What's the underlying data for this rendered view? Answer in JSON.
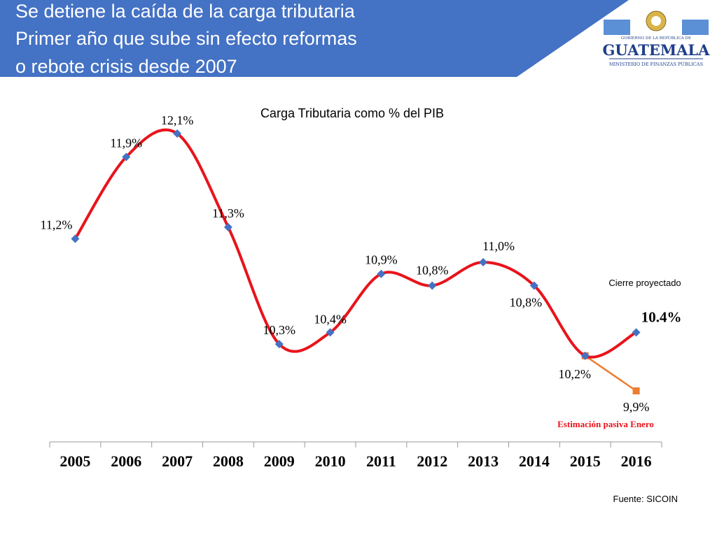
{
  "header": {
    "title_lines": [
      "Se detiene la caída de la carga tributaria",
      "Primer año que sube sin efecto reformas",
      "o rebote crisis desde 2007"
    ],
    "banner_color": "#4472c4"
  },
  "logo": {
    "top_text": "GOBIERNO DE LA REPÚBLICA DE",
    "main_text": "GUATEMALA",
    "sub_text": "MINISTERIO DE FINANZAS PÚBLICAS",
    "icon": "coat-of-arms-icon"
  },
  "chart_data": {
    "type": "line",
    "title": "Carga Tributaria como % del PIB",
    "xlabel": "",
    "ylabel": "",
    "ylim": [
      9.5,
      12.3
    ],
    "grid": false,
    "categories": [
      "2005",
      "2006",
      "2007",
      "2008",
      "2009",
      "2010",
      "2011",
      "2012",
      "2013",
      "2014",
      "2015",
      "2016"
    ],
    "series": [
      {
        "values": [
          11.2,
          11.9,
          12.1,
          11.3,
          10.3,
          10.4,
          10.9,
          10.8,
          11.0,
          10.8,
          10.2,
          10.4
        ],
        "labels": [
          "11,2%",
          "11,9%",
          "12,1%",
          "11,3%",
          "10,3%",
          "10,4%",
          "10,9%",
          "10,8%",
          "11,0%",
          "10,8%",
          "10,2%",
          "10.4%"
        ],
        "line_color": "#e8141b",
        "marker_color": "#4472c4"
      },
      {
        "values": [
          null,
          null,
          null,
          null,
          null,
          null,
          null,
          null,
          null,
          null,
          10.2,
          9.9
        ],
        "labels": [
          null,
          null,
          null,
          null,
          null,
          null,
          null,
          null,
          null,
          null,
          null,
          "9,9%"
        ],
        "line_color": "#ed7d31",
        "marker_color": "#ed7d31"
      }
    ],
    "annotations": {
      "projected_close": "Cierre proyectado",
      "passive_estimate": "Estimación pasiva Enero",
      "passive_estimate_color": "#e8141b"
    }
  },
  "footer": {
    "source": "Fuente: SICOIN"
  }
}
